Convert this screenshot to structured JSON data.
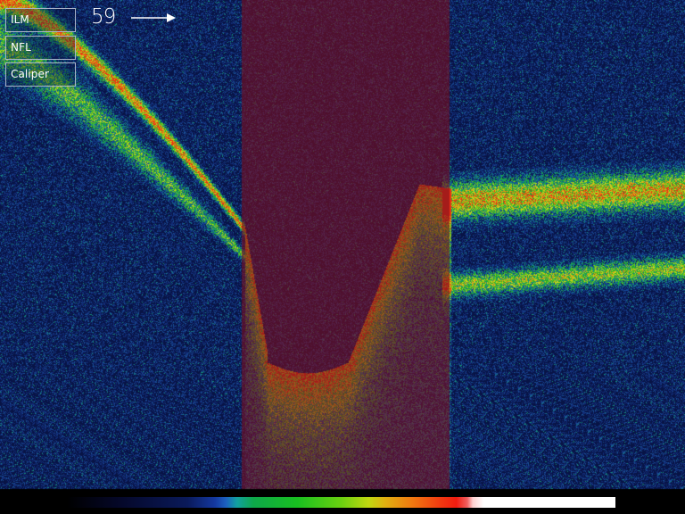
{
  "toolbar": {
    "ilm_label": "ILM",
    "nfl_label": "NFL",
    "caliper_label": "Caliper"
  },
  "scan": {
    "number": "59",
    "direction_icon": "right-arrow-icon"
  },
  "overlay": {
    "optic_disc_highlight_color": "#7a0f1e"
  },
  "colorbar": {
    "scale": "signal-intensity-false-color"
  }
}
